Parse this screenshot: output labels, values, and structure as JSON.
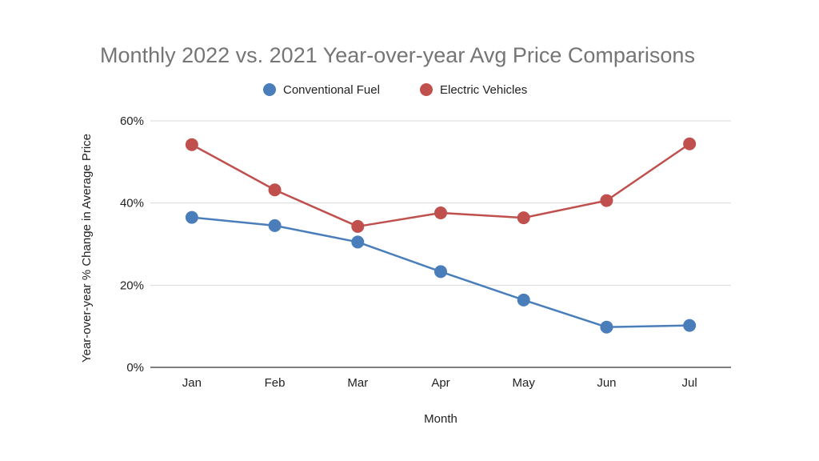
{
  "chart_data": {
    "type": "line",
    "title": "Monthly 2022 vs. 2021 Year-over-year Avg Price Comparisons",
    "xlabel": "Month",
    "ylabel": "Year-over-year % Change in Average Price",
    "categories": [
      "Jan",
      "Feb",
      "Mar",
      "Apr",
      "May",
      "Jun",
      "Jul"
    ],
    "ylim": [
      0,
      60
    ],
    "yticks": [
      0,
      20,
      40,
      60
    ],
    "ytick_labels": [
      "0%",
      "20%",
      "40%",
      "60%"
    ],
    "grid": true,
    "legend_position": "top",
    "series": [
      {
        "name": "Conventional Fuel",
        "color": "#4a7ebb",
        "values": [
          36.5,
          34.5,
          30.5,
          23.3,
          16.4,
          9.8,
          10.2
        ]
      },
      {
        "name": "Electric Vehicles",
        "color": "#c0504d",
        "values": [
          54.2,
          43.2,
          34.3,
          37.6,
          36.4,
          40.6,
          54.4
        ]
      }
    ]
  }
}
